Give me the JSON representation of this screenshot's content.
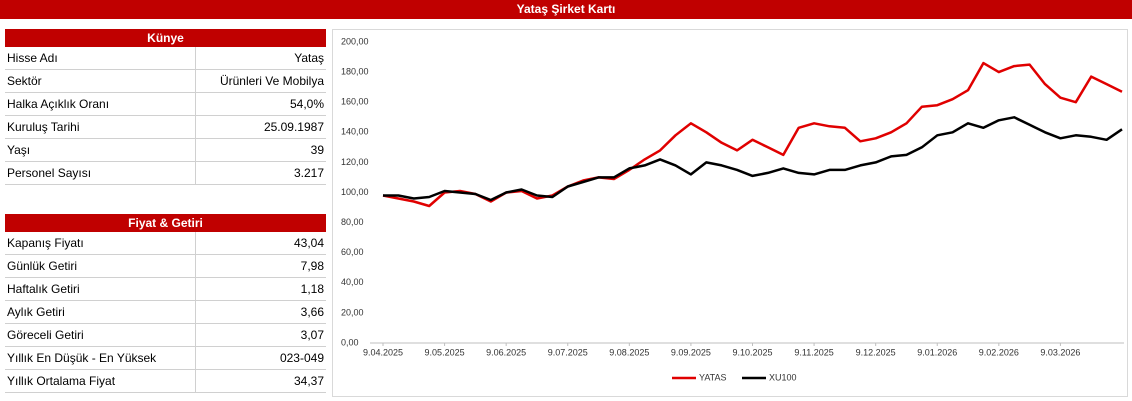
{
  "header": {
    "title": "Yataş Şirket Kartı"
  },
  "kunye": {
    "title": "Künye",
    "rows": [
      [
        "Hisse Adı",
        "Yataş"
      ],
      [
        "Sektör",
        "Ürünleri Ve Mobilya"
      ],
      [
        "Halka Açıklık Oranı",
        "54,0%"
      ],
      [
        "Kuruluş Tarihi",
        "25.09.1987"
      ],
      [
        "Yaşı",
        "39"
      ],
      [
        "Personel Sayısı",
        "3.217"
      ]
    ]
  },
  "fiyat": {
    "title": "Fiyat & Getiri",
    "rows": [
      [
        "Kapanış Fiyatı",
        "43,04"
      ],
      [
        "Günlük Getiri",
        "7,98"
      ],
      [
        "Haftalık Getiri",
        "1,18"
      ],
      [
        "Aylık Getiri",
        "3,66"
      ],
      [
        "Göreceli Getiri",
        "3,07"
      ],
      [
        "Yıllık En Düşük - En Yüksek",
        "023-049"
      ],
      [
        "Yıllık Ortalama Fiyat",
        "34,37"
      ]
    ]
  },
  "chart_data": {
    "type": "line",
    "categories": [
      "9.04.2025",
      null,
      null,
      null,
      "9.05.2025",
      null,
      null,
      null,
      "9.06.2025",
      null,
      null,
      null,
      "9.07.2025",
      null,
      null,
      null,
      "9.08.2025",
      null,
      null,
      null,
      "9.09.2025",
      null,
      null,
      null,
      "9.10.2025",
      null,
      null,
      null,
      "9.11.2025",
      null,
      null,
      null,
      "9.12.2025",
      null,
      null,
      null,
      "9.01.2026",
      null,
      null,
      null,
      "9.02.2026",
      null,
      null,
      null,
      "9.03.2026",
      null,
      null,
      null,
      null
    ],
    "series": [
      {
        "name": "YATAS",
        "color": "#e00000",
        "values": [
          98,
          96,
          94,
          91,
          100,
          101,
          99,
          94,
          100,
          101,
          96,
          98,
          104,
          108,
          110,
          109,
          115,
          122,
          128,
          138,
          146,
          140,
          133,
          128,
          135,
          130,
          125,
          143,
          146,
          144,
          143,
          134,
          136,
          140,
          146,
          157,
          158,
          162,
          168,
          186,
          180,
          184,
          185,
          172,
          163,
          160,
          177,
          172,
          167
        ]
      },
      {
        "name": "XU100",
        "color": "#000000",
        "values": [
          98,
          98,
          96,
          97,
          101,
          100,
          99,
          95,
          100,
          102,
          98,
          97,
          104,
          107,
          110,
          110,
          116,
          118,
          122,
          118,
          112,
          120,
          118,
          115,
          111,
          113,
          116,
          113,
          112,
          115,
          115,
          118,
          120,
          124,
          125,
          130,
          138,
          140,
          146,
          143,
          148,
          150,
          145,
          140,
          136,
          138,
          137,
          135,
          142
        ]
      }
    ],
    "ylim": [
      0,
      200
    ],
    "yticks": [
      {
        "value": 0,
        "label": "0,00"
      },
      {
        "value": 20,
        "label": "20,00"
      },
      {
        "value": 40,
        "label": "40,00"
      },
      {
        "value": 60,
        "label": "60,00"
      },
      {
        "value": 80,
        "label": "80,00"
      },
      {
        "value": 100,
        "label": "100,00"
      },
      {
        "value": 120,
        "label": "120,00"
      },
      {
        "value": 140,
        "label": "140,00"
      },
      {
        "value": 160,
        "label": "160,00"
      },
      {
        "value": 180,
        "label": "180,00"
      },
      {
        "value": 200,
        "label": "200,00"
      }
    ],
    "legend": "bottom"
  }
}
